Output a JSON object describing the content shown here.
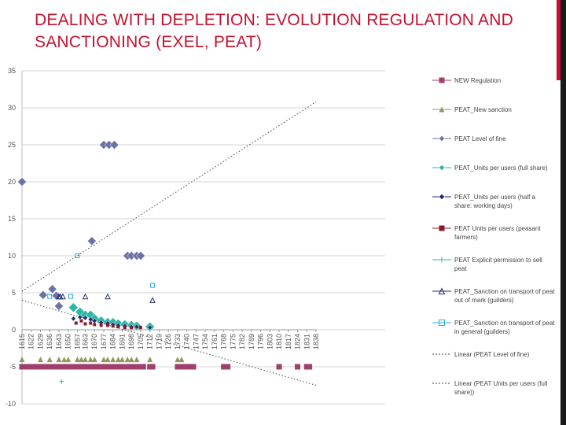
{
  "title": "DEALING WITH DEPLETION: EVOLUTION REGULATION AND SANCTIONING (EXEL, PEAT)",
  "colors": {
    "accent": "#c8102e",
    "bar": "#9e3f6e"
  },
  "chart_data": {
    "type": "scatter",
    "title": "",
    "ylim": [
      -10,
      35
    ],
    "y_ticks": [
      35,
      30,
      25,
      20,
      15,
      10,
      5,
      0,
      -5,
      -10
    ],
    "categories": [
      "1615",
      "1622",
      "1629",
      "1636",
      "1643",
      "1650",
      "1657",
      "1663",
      "1670",
      "1677",
      "1684",
      "1691",
      "1698",
      "1705",
      "1712",
      "1719",
      "1726",
      "1733",
      "1740",
      "1747",
      "1754",
      "1761",
      "1768",
      "1775",
      "1782",
      "1789",
      "1796",
      "1803",
      "1810",
      "1817",
      "1824",
      "1831",
      "1838"
    ],
    "legend": [
      "NEW Regulation",
      "PEAT_New sanction",
      "PEAT Level of fine",
      "PEAT_Units per users (full share)",
      "PEAT_Units per users (half a share: working days)",
      "PEAT Units per users (peasant farmers)",
      "PEAT Explicit permission to sell peat",
      "PEAT_Sanction on transport of peat out of mark (guilders)",
      "PEAT_Sanction on transport of peat in general (guilders)",
      "Linear (PEAT Level of fine)",
      "Linear (PEAT Units per users (full share))"
    ],
    "series": [
      {
        "name": "NEW Regulation",
        "marker": "square",
        "color": "#9e3f6e",
        "points": [
          [
            1615,
            -5
          ],
          [
            1618,
            -5
          ],
          [
            1620,
            -5
          ],
          [
            1622,
            -5
          ],
          [
            1625,
            -5
          ],
          [
            1627,
            -5
          ],
          [
            1629,
            -5
          ],
          [
            1631,
            -5
          ],
          [
            1633,
            -5
          ],
          [
            1636,
            -5
          ],
          [
            1638,
            -5
          ],
          [
            1640,
            -5
          ],
          [
            1643,
            -5
          ],
          [
            1645,
            -5
          ],
          [
            1647,
            -5
          ],
          [
            1650,
            -5
          ],
          [
            1652,
            -5
          ],
          [
            1654,
            -5
          ],
          [
            1657,
            -5
          ],
          [
            1659,
            -5
          ],
          [
            1661,
            -5
          ],
          [
            1663,
            -5
          ],
          [
            1665,
            -5
          ],
          [
            1667,
            -5
          ],
          [
            1670,
            -5
          ],
          [
            1672,
            -5
          ],
          [
            1674,
            -5
          ],
          [
            1677,
            -5
          ],
          [
            1679,
            -5
          ],
          [
            1681,
            -5
          ],
          [
            1684,
            -5
          ],
          [
            1686,
            -5
          ],
          [
            1688,
            -5
          ],
          [
            1691,
            -5
          ],
          [
            1693,
            -5
          ],
          [
            1695,
            -5
          ],
          [
            1698,
            -5
          ],
          [
            1700,
            -5
          ],
          [
            1702,
            -5
          ],
          [
            1705,
            -5
          ],
          [
            1707,
            -5
          ],
          [
            1712,
            -5
          ],
          [
            1714,
            -5
          ],
          [
            1733,
            -5
          ],
          [
            1736,
            -5
          ],
          [
            1740,
            -5
          ],
          [
            1742,
            -5
          ],
          [
            1745,
            -5
          ],
          [
            1768,
            -5
          ],
          [
            1771,
            -5
          ],
          [
            1810,
            -5
          ],
          [
            1824,
            -5
          ],
          [
            1831,
            -5
          ],
          [
            1833,
            -5
          ]
        ]
      },
      {
        "name": "PEAT_New sanction",
        "marker": "triangle",
        "color": "#8a9a5b",
        "points": [
          [
            1615,
            -4
          ],
          [
            1629,
            -4
          ],
          [
            1636,
            -4
          ],
          [
            1643,
            -4
          ],
          [
            1647,
            -4
          ],
          [
            1650,
            -4
          ],
          [
            1657,
            -4
          ],
          [
            1660,
            -4
          ],
          [
            1663,
            -4
          ],
          [
            1667,
            -4
          ],
          [
            1670,
            -4
          ],
          [
            1677,
            -4
          ],
          [
            1680,
            -4
          ],
          [
            1684,
            -4
          ],
          [
            1688,
            -4
          ],
          [
            1691,
            -4
          ],
          [
            1695,
            -4
          ],
          [
            1698,
            -4
          ],
          [
            1702,
            -4
          ],
          [
            1712,
            -4
          ],
          [
            1733,
            -4
          ],
          [
            1736,
            -4
          ]
        ]
      },
      {
        "name": "PEAT Level of fine",
        "marker": "diamond",
        "color": "#6b72a8",
        "points": [
          [
            1615,
            20
          ],
          [
            1631,
            4.7
          ],
          [
            1638,
            5.5
          ],
          [
            1641,
            4.6
          ],
          [
            1643,
            3.2
          ],
          [
            1668,
            12
          ],
          [
            1677,
            25
          ],
          [
            1681,
            25
          ],
          [
            1685,
            25
          ],
          [
            1695,
            10
          ],
          [
            1698,
            10
          ],
          [
            1702,
            10
          ],
          [
            1705,
            10
          ]
        ]
      },
      {
        "name": "PEAT_Units per users (full share)",
        "marker": "diamond",
        "color": "#2fb5a5",
        "points": [
          [
            1654,
            3
          ],
          [
            1659,
            2.4
          ],
          [
            1663,
            2
          ],
          [
            1667,
            2
          ],
          [
            1670,
            1.5
          ],
          [
            1675,
            1.2
          ],
          [
            1680,
            1
          ],
          [
            1684,
            1
          ],
          [
            1688,
            0.8
          ],
          [
            1693,
            0.7
          ],
          [
            1698,
            0.6
          ],
          [
            1702,
            0.5
          ],
          [
            1712,
            0.4
          ]
        ]
      },
      {
        "name": "PEAT_Units per users (half a share: working days)",
        "marker": "diamond",
        "color": "#1f2a6e",
        "points": [
          [
            1654,
            1.5
          ],
          [
            1659,
            1.7
          ],
          [
            1663,
            1.6
          ],
          [
            1667,
            1.4
          ],
          [
            1670,
            1.2
          ],
          [
            1675,
            1
          ],
          [
            1680,
            0.9
          ],
          [
            1684,
            0.7
          ],
          [
            1688,
            0.6
          ],
          [
            1693,
            0.5
          ],
          [
            1698,
            0.4
          ],
          [
            1702,
            0.4
          ],
          [
            1712,
            0.3
          ]
        ]
      },
      {
        "name": "PEAT Units per users (peasant farmers)",
        "marker": "square",
        "color": "#8b1a2b",
        "points": [
          [
            1656,
            0.9
          ],
          [
            1660,
            1.2
          ],
          [
            1663,
            0.8
          ],
          [
            1667,
            0.9
          ],
          [
            1670,
            0.7
          ],
          [
            1675,
            0.6
          ],
          [
            1680,
            0.6
          ],
          [
            1684,
            0.5
          ],
          [
            1688,
            0.4
          ],
          [
            1693,
            0.3
          ],
          [
            1698,
            0.3
          ],
          [
            1705,
            0.3
          ]
        ]
      },
      {
        "name": "PEAT Explicit permission to sell peat",
        "marker": "plus",
        "color": "#2fb5a5",
        "points": [
          [
            1645,
            -7
          ]
        ]
      },
      {
        "name": "PEAT_Sanction on transport of peat out of mark (guilders)",
        "marker": "triangle-open",
        "color": "#1f2a6e",
        "points": [
          [
            1643,
            4.5
          ],
          [
            1644,
            4.5
          ],
          [
            1646,
            4.5
          ],
          [
            1663,
            4.5
          ],
          [
            1680,
            4.5
          ],
          [
            1714,
            4
          ]
        ]
      },
      {
        "name": "PEAT_Sanction on transport of peat in general (guilders)",
        "marker": "square-open",
        "color": "#2fa8d8",
        "points": [
          [
            1636,
            4.5
          ],
          [
            1652,
            4.5
          ],
          [
            1657,
            10
          ],
          [
            1714,
            6
          ]
        ]
      },
      {
        "name": "Linear (PEAT Level of fine)",
        "marker": "line",
        "color": "#444444",
        "points": [
          [
            1615,
            5.2
          ],
          [
            1838,
            30.8
          ]
        ]
      },
      {
        "name": "Linear (PEAT Units per users (full share))",
        "marker": "line",
        "color": "#444444",
        "points": [
          [
            1615,
            4
          ],
          [
            1838,
            -7.5
          ]
        ]
      }
    ]
  }
}
